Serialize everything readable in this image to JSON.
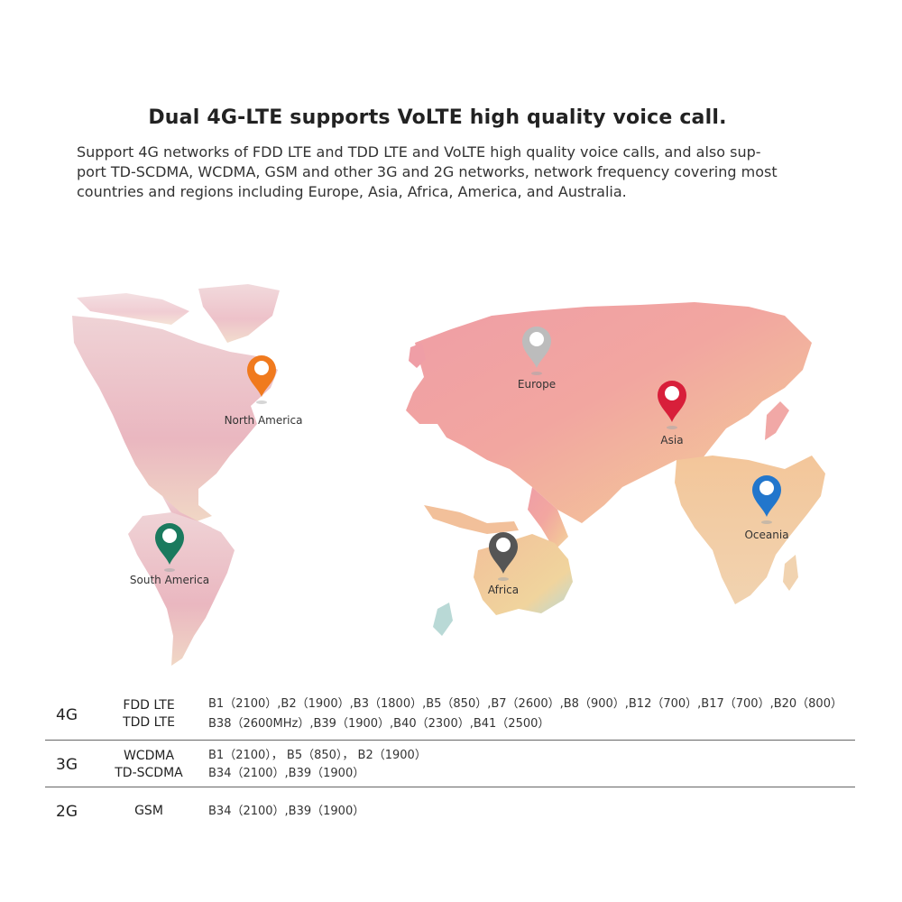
{
  "title": "Dual 4G-LTE supports VoLTE high quality voice call.",
  "description": {
    "line1": "Support 4G networks of FDD LTE and TDD LTE and VoLTE high quality voice calls, and also sup-",
    "line2": "port TD-SCDMA, WCDMA, GSM and other 3G and 2G networks, network frequency covering most",
    "line3": "countries and regions including Europe, Asia, Africa, America, and Australia."
  },
  "map": {
    "pins": [
      {
        "label": "North America",
        "color": "#f07a1e",
        "icon": "map-pin-icon"
      },
      {
        "label": "Europe",
        "color": "#bcbcbc",
        "icon": "map-pin-icon"
      },
      {
        "label": "Asia",
        "color": "#d81f3a",
        "icon": "map-pin-icon"
      },
      {
        "label": "Oceania",
        "color": "#2276cc",
        "icon": "map-pin-icon"
      },
      {
        "label": "South America",
        "color": "#1a7a5e",
        "icon": "map-pin-icon"
      },
      {
        "label": "Africa",
        "color": "#555555",
        "icon": "map-pin-icon"
      }
    ]
  },
  "bands": {
    "g4": {
      "gen": "4G",
      "tech1": "FDD LTE",
      "tech2": "TDD LTE",
      "band1": "B1（2100）,B2（1900）,B3（1800）,B5（850）,B7（2600）,B8（900）,B12（700）,B17（700）,B20（800）",
      "band2": "B38（2600MHz）,B39（1900）,B40（2300）,B41（2500）"
    },
    "g3": {
      "gen": "3G",
      "tech1": "WCDMA",
      "tech2": "TD-SCDMA",
      "band1": "B1（2100）， B5（850）， B2（1900）",
      "band2": "B34（2100）,B39（1900）"
    },
    "g2": {
      "gen": "2G",
      "tech1": "GSM",
      "band1": "B34（2100）,B39（1900）"
    }
  }
}
